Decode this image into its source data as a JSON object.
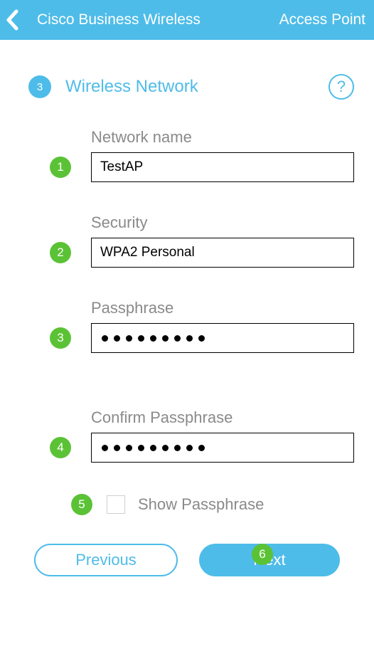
{
  "header": {
    "title": "Cisco Business Wireless",
    "right": "Access Point"
  },
  "section": {
    "step": "3",
    "title": "Wireless Network",
    "help": "?"
  },
  "fields": {
    "networkName": {
      "label": "Network name",
      "value": "TestAP",
      "badge": "1"
    },
    "security": {
      "label": "Security",
      "value": "WPA2 Personal",
      "badge": "2"
    },
    "passphrase": {
      "label": "Passphrase",
      "badge": "3",
      "dotCount": 9
    },
    "confirm": {
      "label": "Confirm Passphrase",
      "badge": "4",
      "dotCount": 9
    },
    "show": {
      "label": "Show Passphrase",
      "badge": "5",
      "checked": false
    }
  },
  "buttons": {
    "previous": "Previous",
    "next": "Next",
    "nextBadge": "6"
  },
  "colors": {
    "primary": "#4ebce8",
    "badge": "#5bc236",
    "labelGrey": "#8a8a8a"
  }
}
